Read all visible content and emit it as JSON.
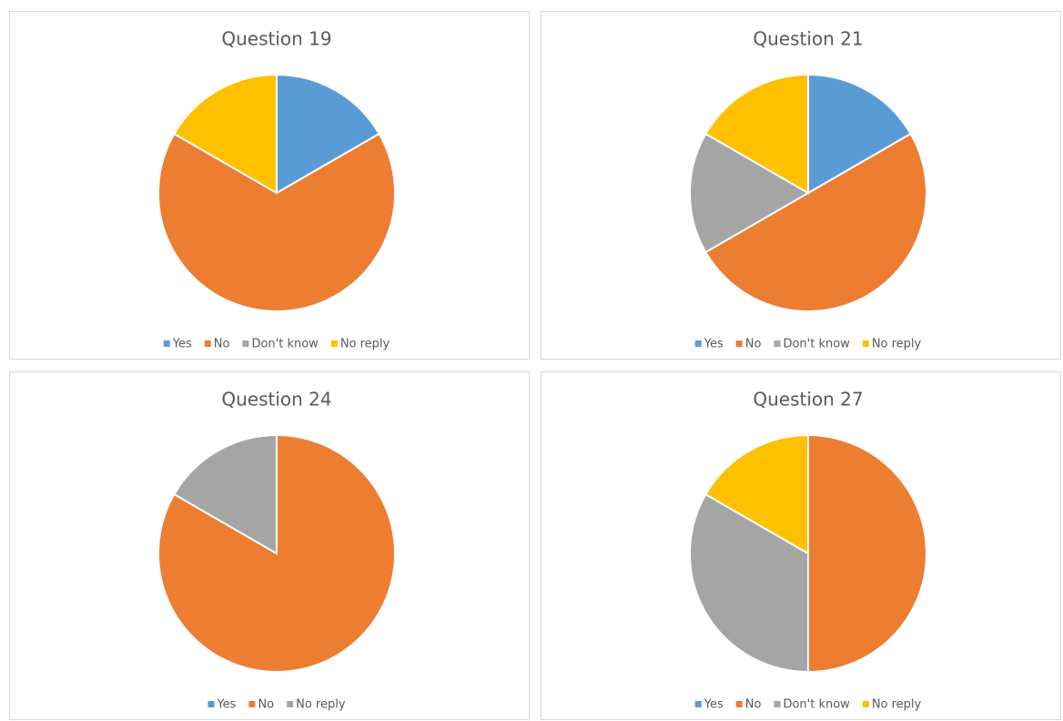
{
  "chart_data": [
    {
      "type": "pie",
      "title": "Question 19",
      "categories": [
        "Yes",
        "No",
        "Don't know",
        "No reply"
      ],
      "values": [
        1,
        4,
        0,
        1
      ],
      "colors": [
        "#5b9bd5",
        "#ed7d31",
        "#a5a5a5",
        "#ffc000"
      ]
    },
    {
      "type": "pie",
      "title": "Question 21",
      "categories": [
        "Yes",
        "No",
        "Don't know",
        "No reply"
      ],
      "values": [
        1,
        3,
        1,
        1
      ],
      "colors": [
        "#5b9bd5",
        "#ed7d31",
        "#a5a5a5",
        "#ffc000"
      ]
    },
    {
      "type": "pie",
      "title": "Question 24",
      "categories": [
        "Yes",
        "No",
        "No reply"
      ],
      "values": [
        0,
        5,
        1
      ],
      "colors": [
        "#5b9bd5",
        "#ed7d31",
        "#a5a5a5"
      ]
    },
    {
      "type": "pie",
      "title": "Question 27",
      "categories": [
        "Yes",
        "No",
        "Don't know",
        "No reply"
      ],
      "values": [
        0,
        3,
        2,
        1
      ],
      "colors": [
        "#5b9bd5",
        "#ed7d31",
        "#a5a5a5",
        "#ffc000"
      ]
    }
  ]
}
